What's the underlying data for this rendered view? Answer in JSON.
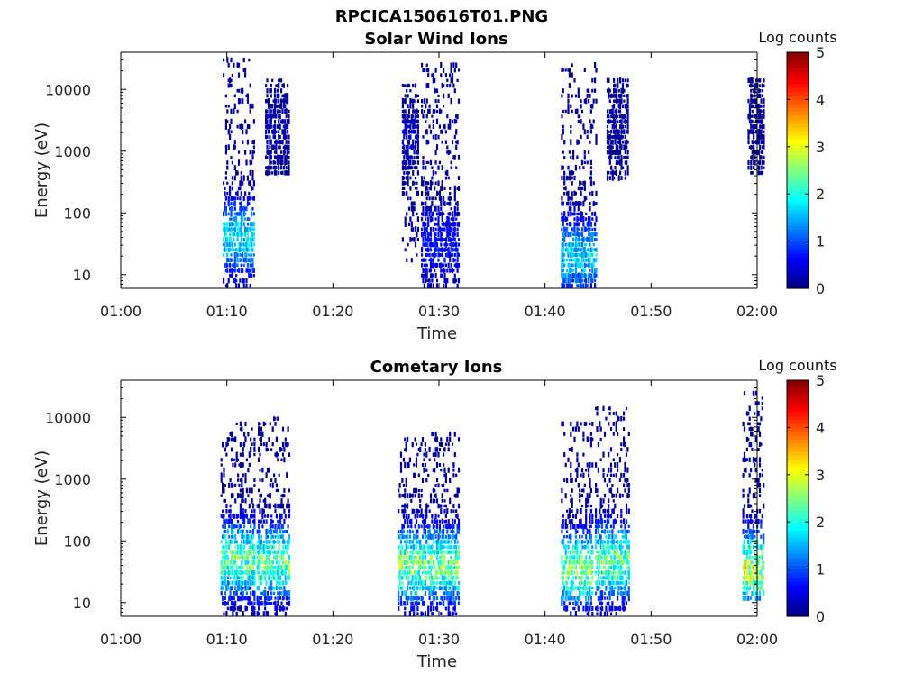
{
  "figure_title": "RPCICA150616T01.PNG",
  "chart_data": [
    {
      "type": "heatmap",
      "title": "Solar Wind Ions",
      "xlabel": "Time",
      "ylabel": "Energy (eV)",
      "xlim": [
        "01:00",
        "02:00"
      ],
      "ylim": [
        6,
        40000
      ],
      "yscale": "log",
      "xticks": [
        "01:00",
        "01:10",
        "01:20",
        "01:30",
        "01:40",
        "01:50",
        "02:00"
      ],
      "yticks": [
        "10",
        "100",
        "1000",
        "10000"
      ],
      "grid": false,
      "colorbar": {
        "label": "Log counts",
        "ticks": [
          "0",
          "1",
          "2",
          "3",
          "4",
          "5"
        ],
        "range": [
          0,
          5
        ],
        "colormap": "jet"
      },
      "clusters": [
        {
          "t_start": "01:09.6",
          "t_end": "01:12.6",
          "e_min": 6,
          "e_max": 35000,
          "peak_log_counts": 2.2,
          "peak_energy_ev": 40
        },
        {
          "t_start": "01:13.6",
          "t_end": "01:15.8",
          "e_min": 400,
          "e_max": 15000,
          "peak_log_counts": 0.3,
          "peak_energy_ev": 2000
        },
        {
          "t_start": "01:26.5",
          "t_end": "01:28.0",
          "e_min": 15,
          "e_max": 12000,
          "peak_log_counts": 0.4,
          "peak_energy_ev": 1500
        },
        {
          "t_start": "01:28.3",
          "t_end": "01:31.8",
          "e_min": 6,
          "e_max": 25000,
          "peak_log_counts": 0.9,
          "peak_energy_ev": 30
        },
        {
          "t_start": "01:41.5",
          "t_end": "01:44.8",
          "e_min": 6,
          "e_max": 26000,
          "peak_log_counts": 2.1,
          "peak_energy_ev": 20
        },
        {
          "t_start": "01:45.8",
          "t_end": "01:47.8",
          "e_min": 350,
          "e_max": 15000,
          "peak_log_counts": 0.2,
          "peak_energy_ev": 3000
        },
        {
          "t_start": "01:59.1",
          "t_end": "02:00.6",
          "e_min": 400,
          "e_max": 16000,
          "peak_log_counts": 0.2,
          "peak_energy_ev": 3000
        }
      ]
    },
    {
      "type": "heatmap",
      "title": "Cometary Ions",
      "xlabel": "Time",
      "ylabel": "Energy (eV)",
      "xlim": [
        "01:00",
        "02:00"
      ],
      "ylim": [
        6,
        40000
      ],
      "yscale": "log",
      "xticks": [
        "01:00",
        "01:10",
        "01:20",
        "01:30",
        "01:40",
        "01:50",
        "02:00"
      ],
      "yticks": [
        "10",
        "100",
        "1000",
        "10000"
      ],
      "grid": false,
      "colorbar": {
        "label": "Log counts",
        "ticks": [
          "0",
          "1",
          "2",
          "3",
          "4",
          "5"
        ],
        "range": [
          0,
          5
        ],
        "colormap": "jet"
      },
      "clusters": [
        {
          "t_start": "01:09.4",
          "t_end": "01:12.6",
          "e_min": 6,
          "e_max": 8000,
          "peak_log_counts": 3.0,
          "peak_energy_ev": 50
        },
        {
          "t_start": "01:12.8",
          "t_end": "01:15.9",
          "e_min": 6,
          "e_max": 11000,
          "peak_log_counts": 3.0,
          "peak_energy_ev": 45
        },
        {
          "t_start": "01:26.1",
          "t_end": "01:28.8",
          "e_min": 6,
          "e_max": 4500,
          "peak_log_counts": 3.1,
          "peak_energy_ev": 40
        },
        {
          "t_start": "01:28.9",
          "t_end": "01:31.8",
          "e_min": 6,
          "e_max": 6000,
          "peak_log_counts": 3.0,
          "peak_energy_ev": 40
        },
        {
          "t_start": "01:41.5",
          "t_end": "01:44.5",
          "e_min": 6,
          "e_max": 8500,
          "peak_log_counts": 3.2,
          "peak_energy_ev": 35
        },
        {
          "t_start": "01:44.7",
          "t_end": "01:47.9",
          "e_min": 6,
          "e_max": 15000,
          "peak_log_counts": 3.0,
          "peak_energy_ev": 45
        },
        {
          "t_start": "01:58.6",
          "t_end": "02:00.6",
          "e_min": 10,
          "e_max": 30000,
          "peak_log_counts": 3.6,
          "peak_energy_ev": 35
        }
      ]
    }
  ]
}
